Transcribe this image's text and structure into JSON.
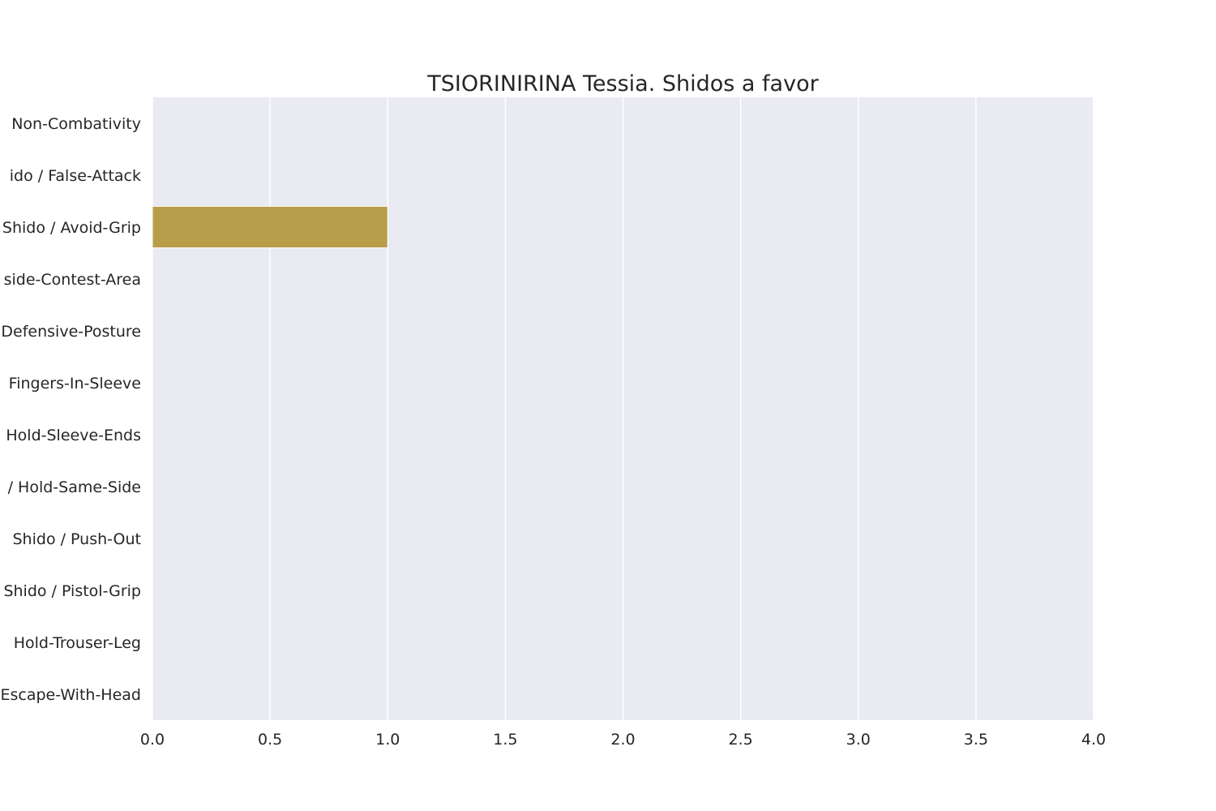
{
  "chart_data": {
    "type": "bar",
    "orientation": "horizontal",
    "title": "TSIORINIRINA Tessia. Shidos a favor",
    "xlabel": "",
    "ylabel": "",
    "xlim": [
      0,
      4
    ],
    "x_ticks": [
      "0.0",
      "0.5",
      "1.0",
      "1.5",
      "2.0",
      "2.5",
      "3.0",
      "3.5",
      "4.0"
    ],
    "grid": true,
    "categories": [
      "Non-Combativity",
      "ido / False-Attack",
      "Shido / Avoid-Grip",
      "side-Contest-Area",
      "Defensive-Posture",
      "Fingers-In-Sleeve",
      "Hold-Sleeve-Ends",
      "/ Hold-Same-Side",
      "Shido / Push-Out",
      "Shido / Pistol-Grip",
      "Hold-Trouser-Leg",
      "Escape-With-Head"
    ],
    "values": [
      0,
      0,
      1,
      0,
      0,
      0,
      0,
      0,
      0,
      0,
      0,
      0
    ],
    "bar_color": "#b89d4a",
    "plot_background": "#eaeaf2",
    "grid_color": "#ffffff"
  }
}
